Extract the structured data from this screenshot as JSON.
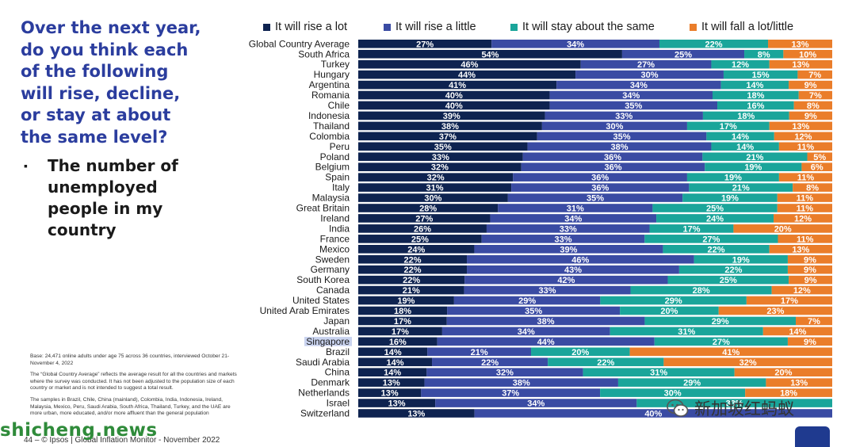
{
  "question": {
    "lines": [
      "Over the next year,",
      "do you think each",
      "of the following",
      "will rise, decline,",
      "or stay at about",
      "the same level?"
    ],
    "bullet_mark": "▪",
    "bullet_lines": [
      "The number of",
      "unemployed",
      "people in my",
      "country"
    ]
  },
  "notes": {
    "base": "Base: 24,471 online adults under age 75 across 36 countries, interviewed October 21-November 4, 2022",
    "global_average": "The “Global Country Average” reflects the average result for all the countries and markets where the survey was conducted. It has not been adjusted to the population size of each country or market and is not intended to suggest a total result.",
    "samples": "The samples in Brazil, Chile, China (mainland), Colombia, India, Indonesia, Ireland, Malaysia, Mexico, Peru, Saudi Arabia, South Africa, Thailand, Turkey, and the UAE are more urban, more educated, and/or more affluent than the general population"
  },
  "footer": "44 – © Ipsos | Global Inflation Monitor - November 2022",
  "watermark_site": "shicheng.news",
  "watermark_social": "新加坡红蚂蚁",
  "icons": {
    "bullet": "square-bullet-icon",
    "social": "wechat-icon",
    "logo": "ipsos-logo-icon"
  },
  "colors": {
    "rise_a_lot": "#0e2350",
    "rise_a_little": "#3a4ba3",
    "stay_same": "#1aa59a",
    "fall": "#ea7d2a",
    "question": "#2b3d9e",
    "highlight": "#c9d3ef"
  },
  "chart_data": {
    "type": "bar",
    "orientation": "horizontal",
    "stacked": true,
    "unit": "%",
    "highlighted_category": "Singapore",
    "legend_position": "top",
    "categories": [
      "Global Country Average",
      "South Africa",
      "Turkey",
      "Hungary",
      "Argentina",
      "Romania",
      "Chile",
      "Indonesia",
      "Thailand",
      "Colombia",
      "Peru",
      "Poland",
      "Belgium",
      "Spain",
      "Italy",
      "Malaysia",
      "Great Britain",
      "Ireland",
      "India",
      "France",
      "Mexico",
      "Sweden",
      "Germany",
      "South Korea",
      "Canada",
      "United States",
      "United Arab Emirates",
      "Japan",
      "Australia",
      "Singapore",
      "Brazil",
      "Saudi Arabia",
      "China",
      "Denmark",
      "Netherlands",
      "Israel",
      "Switzerland"
    ],
    "series": [
      {
        "name": "It will rise a lot",
        "values": [
          27,
          54,
          46,
          44,
          41,
          40,
          40,
          39,
          38,
          37,
          35,
          33,
          32,
          32,
          31,
          30,
          28,
          27,
          26,
          25,
          24,
          22,
          22,
          22,
          21,
          19,
          18,
          17,
          17,
          16,
          14,
          14,
          14,
          13,
          13,
          13,
          13
        ]
      },
      {
        "name": "It will rise a little",
        "values": [
          34,
          25,
          27,
          30,
          34,
          34,
          35,
          33,
          30,
          35,
          38,
          36,
          36,
          36,
          36,
          35,
          31,
          34,
          33,
          33,
          39,
          46,
          43,
          42,
          33,
          29,
          35,
          38,
          34,
          44,
          21,
          22,
          32,
          38,
          37,
          34,
          40
        ]
      },
      {
        "name": "It will stay about the same",
        "values": [
          22,
          8,
          12,
          15,
          14,
          18,
          16,
          18,
          17,
          14,
          14,
          21,
          19,
          19,
          21,
          19,
          25,
          24,
          17,
          27,
          22,
          19,
          22,
          25,
          28,
          29,
          20,
          29,
          31,
          27,
          20,
          22,
          31,
          29,
          30,
          33,
          null
        ]
      },
      {
        "name": "It will fall a lot/little",
        "values": [
          13,
          10,
          13,
          7,
          9,
          7,
          8,
          9,
          13,
          12,
          11,
          5,
          6,
          11,
          8,
          11,
          11,
          12,
          20,
          11,
          13,
          9,
          9,
          9,
          12,
          17,
          23,
          7,
          14,
          9,
          41,
          32,
          20,
          13,
          18,
          null,
          null
        ]
      }
    ]
  }
}
